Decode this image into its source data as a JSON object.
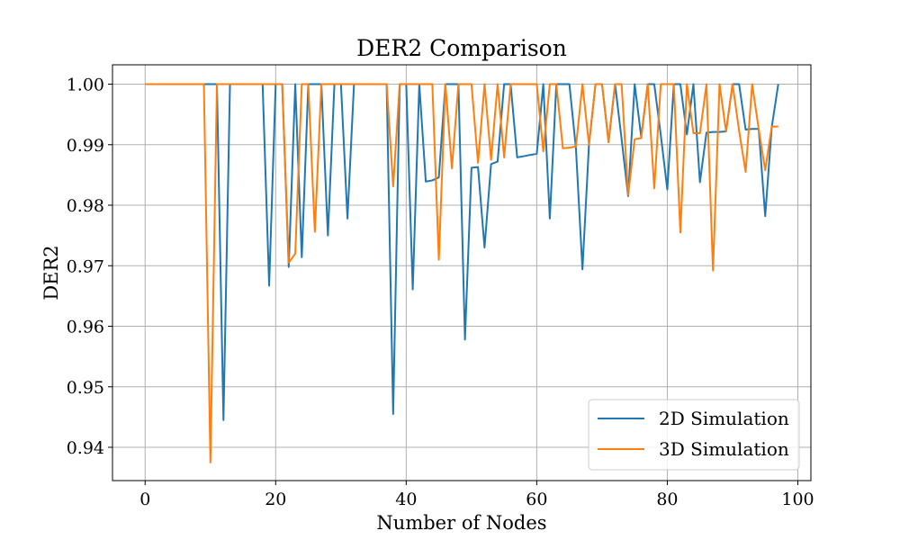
{
  "chart_data": {
    "type": "line",
    "title": "DER2 Comparison",
    "xlabel": "Number of Nodes",
    "ylabel": "DER2",
    "xlim": [
      -5,
      102
    ],
    "ylim": [
      0.9345,
      1.0032
    ],
    "xticks": [
      0,
      20,
      40,
      60,
      80,
      100
    ],
    "xtick_labels": [
      "0",
      "20",
      "40",
      "60",
      "80",
      "100"
    ],
    "yticks": [
      0.94,
      0.95,
      0.96,
      0.97,
      0.98,
      0.99,
      1.0
    ],
    "ytick_labels": [
      "0.94",
      "0.95",
      "0.96",
      "0.97",
      "0.98",
      "0.99",
      "1.00"
    ],
    "grid": true,
    "legend_position": "bottom-right",
    "series": [
      {
        "name": "2D Simulation",
        "color": "#1f77b4",
        "x": [
          0,
          1,
          2,
          3,
          4,
          5,
          6,
          7,
          8,
          9,
          10,
          11,
          12,
          13,
          14,
          15,
          16,
          17,
          18,
          19,
          20,
          21,
          22,
          23,
          24,
          25,
          26,
          27,
          28,
          29,
          30,
          31,
          32,
          33,
          34,
          35,
          36,
          37,
          38,
          39,
          40,
          41,
          42,
          43,
          44,
          45,
          46,
          47,
          48,
          49,
          50,
          51,
          52,
          53,
          54,
          55,
          56,
          57,
          58,
          59,
          60,
          61,
          62,
          63,
          64,
          65,
          66,
          67,
          68,
          69,
          70,
          71,
          72,
          73,
          74,
          75,
          76,
          77,
          78,
          79,
          80,
          81,
          82,
          83,
          84,
          85,
          86,
          87,
          88,
          89,
          90,
          91,
          92,
          93,
          94,
          95,
          96,
          97
        ],
        "y": [
          1.0,
          1.0,
          1.0,
          1.0,
          1.0,
          1.0,
          1.0,
          1.0,
          1.0,
          1.0,
          1.0,
          1.0,
          0.9445,
          1.0,
          1.0,
          1.0,
          1.0,
          1.0,
          1.0,
          0.9667,
          1.0,
          1.0,
          0.9698,
          1.0,
          0.9714,
          1.0,
          1.0,
          1.0,
          0.975,
          1.0,
          1.0,
          0.9778,
          1.0,
          1.0,
          1.0,
          1.0,
          1.0,
          1.0,
          0.9455,
          1.0,
          1.0,
          0.9661,
          1.0,
          0.9839,
          0.9841,
          0.9846,
          1.0,
          1.0,
          1.0,
          0.9578,
          0.9862,
          0.9863,
          0.973,
          0.9868,
          0.9872,
          1.0,
          1.0,
          0.9879,
          0.9881,
          0.9883,
          0.9885,
          1.0,
          0.9778,
          1.0,
          1.0,
          1.0,
          0.9894,
          0.9694,
          0.99,
          1.0,
          1.0,
          0.9905,
          1.0,
          0.9909,
          0.9815,
          1.0,
          0.9913,
          1.0,
          1.0,
          0.9916,
          0.9826,
          1.0,
          1.0,
          0.9917,
          1.0,
          0.9838,
          0.992,
          0.9921,
          0.9921,
          0.9922,
          1.0,
          1.0,
          0.9925,
          0.9926,
          0.9926,
          0.9782,
          0.9929,
          1.0
        ]
      },
      {
        "name": "3D Simulation",
        "color": "#ff7f0e",
        "x": [
          0,
          1,
          2,
          3,
          4,
          5,
          6,
          7,
          8,
          9,
          10,
          11,
          12,
          13,
          14,
          15,
          16,
          17,
          18,
          19,
          20,
          21,
          22,
          23,
          24,
          25,
          26,
          27,
          28,
          29,
          30,
          31,
          32,
          33,
          34,
          35,
          36,
          37,
          38,
          39,
          40,
          41,
          42,
          43,
          44,
          45,
          46,
          47,
          48,
          49,
          50,
          51,
          52,
          53,
          54,
          55,
          56,
          57,
          58,
          59,
          60,
          61,
          62,
          63,
          64,
          65,
          66,
          67,
          68,
          69,
          70,
          71,
          72,
          73,
          74,
          75,
          76,
          77,
          78,
          79,
          80,
          81,
          82,
          83,
          84,
          85,
          86,
          87,
          88,
          89,
          90,
          91,
          92,
          93,
          94,
          95,
          96,
          97
        ],
        "y": [
          1.0,
          1.0,
          1.0,
          1.0,
          1.0,
          1.0,
          1.0,
          1.0,
          1.0,
          1.0,
          0.9375,
          1.0,
          1.0,
          1.0,
          1.0,
          1.0,
          1.0,
          1.0,
          1.0,
          1.0,
          1.0,
          1.0,
          0.9705,
          0.972,
          1.0,
          1.0,
          0.9756,
          1.0,
          1.0,
          1.0,
          1.0,
          1.0,
          1.0,
          1.0,
          1.0,
          1.0,
          1.0,
          1.0,
          0.9831,
          1.0,
          1.0,
          1.0,
          1.0,
          1.0,
          1.0,
          0.971,
          1.0,
          0.9861,
          1.0,
          1.0,
          1.0,
          0.987,
          1.0,
          0.9875,
          1.0,
          0.9879,
          1.0,
          1.0,
          1.0,
          1.0,
          1.0,
          0.9889,
          1.0,
          1.0,
          0.9894,
          0.9895,
          0.9897,
          1.0,
          0.99,
          1.0,
          1.0,
          0.9904,
          1.0,
          1.0,
          0.9817,
          0.9909,
          0.9911,
          1.0,
          0.9828,
          1.0,
          1.0,
          1.0,
          0.9755,
          1.0,
          0.9919,
          0.9919,
          1.0,
          0.9692,
          1.0,
          0.9922,
          1.0,
          0.9923,
          0.9855,
          1.0,
          0.9926,
          0.9858,
          0.993,
          0.993
        ]
      }
    ]
  }
}
